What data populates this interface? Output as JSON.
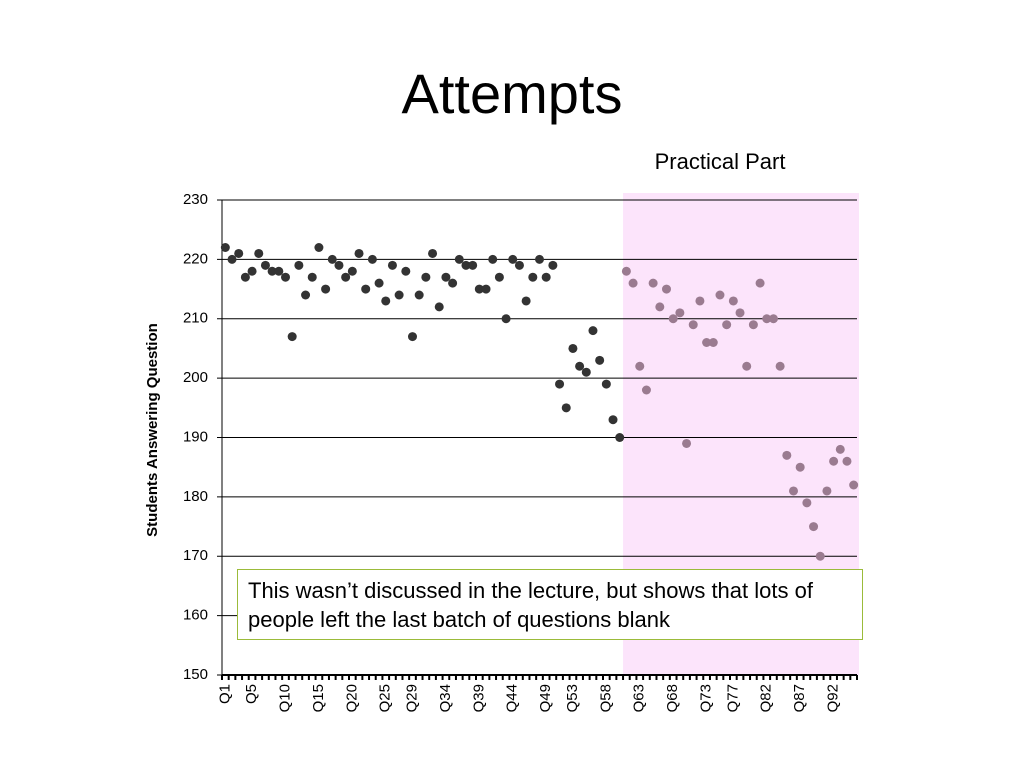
{
  "chart_data": {
    "type": "scatter",
    "title": "Attempts",
    "y_label": "Students Answering Question",
    "annotation": "This wasn’t discussed in the lecture, but shows that lots of people left the last batch of questions blank",
    "categories": [
      "Q1",
      null,
      null,
      null,
      "Q5",
      null,
      null,
      null,
      null,
      "Q10",
      null,
      null,
      null,
      null,
      "Q15",
      null,
      null,
      null,
      null,
      "Q20",
      null,
      null,
      null,
      null,
      "Q25",
      null,
      null,
      null,
      "Q29",
      null,
      null,
      null,
      null,
      "Q34",
      null,
      null,
      null,
      null,
      "Q39",
      null,
      null,
      null,
      null,
      "Q44",
      null,
      null,
      null,
      null,
      "Q49",
      null,
      null,
      null,
      "Q53",
      null,
      null,
      null,
      null,
      "Q58",
      null,
      null,
      null,
      null,
      "Q63",
      null,
      null,
      null,
      null,
      "Q68",
      null,
      null,
      null,
      null,
      "Q73",
      null,
      null,
      null,
      "Q77",
      null,
      null,
      null,
      null,
      "Q82",
      null,
      null,
      null,
      null,
      "Q87",
      null,
      null,
      null,
      null,
      "Q92",
      null,
      null,
      null
    ],
    "series": [
      {
        "color": "#333333",
        "values": [
          222,
          220,
          221,
          217,
          218,
          221,
          219,
          218,
          218,
          217,
          207,
          219,
          214,
          217,
          222,
          215,
          220,
          219,
          217,
          218,
          221,
          215,
          220,
          216,
          213,
          219,
          214,
          218,
          207,
          214,
          217,
          221,
          212,
          217,
          216,
          220,
          219,
          219,
          215,
          215,
          220,
          217,
          210,
          220,
          219,
          213,
          217,
          220,
          217,
          219,
          199,
          195,
          205,
          202,
          201,
          208,
          203,
          199,
          193,
          190,
          null,
          null,
          null,
          null,
          null,
          null,
          null,
          null,
          null,
          null,
          null,
          null,
          null,
          null,
          null,
          null,
          null,
          null,
          null,
          null,
          null,
          null,
          null,
          null,
          null,
          null,
          null,
          null,
          null,
          null,
          null,
          null,
          null,
          null,
          null
        ]
      },
      {
        "name": "Practical Part",
        "color": "#9a7b90",
        "shade": "#fce4fb",
        "values": [
          null,
          null,
          null,
          null,
          null,
          null,
          null,
          null,
          null,
          null,
          null,
          null,
          null,
          null,
          null,
          null,
          null,
          null,
          null,
          null,
          null,
          null,
          null,
          null,
          null,
          null,
          null,
          null,
          null,
          null,
          null,
          null,
          null,
          null,
          null,
          null,
          null,
          null,
          null,
          null,
          null,
          null,
          null,
          null,
          null,
          null,
          null,
          null,
          null,
          null,
          null,
          null,
          null,
          null,
          null,
          null,
          null,
          null,
          null,
          null,
          218,
          216,
          202,
          198,
          216,
          212,
          215,
          210,
          211,
          189,
          209,
          213,
          206,
          206,
          214,
          209,
          213,
          211,
          202,
          209,
          216,
          210,
          210,
          202,
          187,
          181,
          185,
          179,
          175,
          170,
          181,
          186,
          188,
          186,
          182
        ]
      }
    ],
    "ylim": [
      150,
      230
    ],
    "yticks": [
      150,
      160,
      170,
      180,
      190,
      200,
      210,
      220,
      230
    ],
    "grid": true
  }
}
